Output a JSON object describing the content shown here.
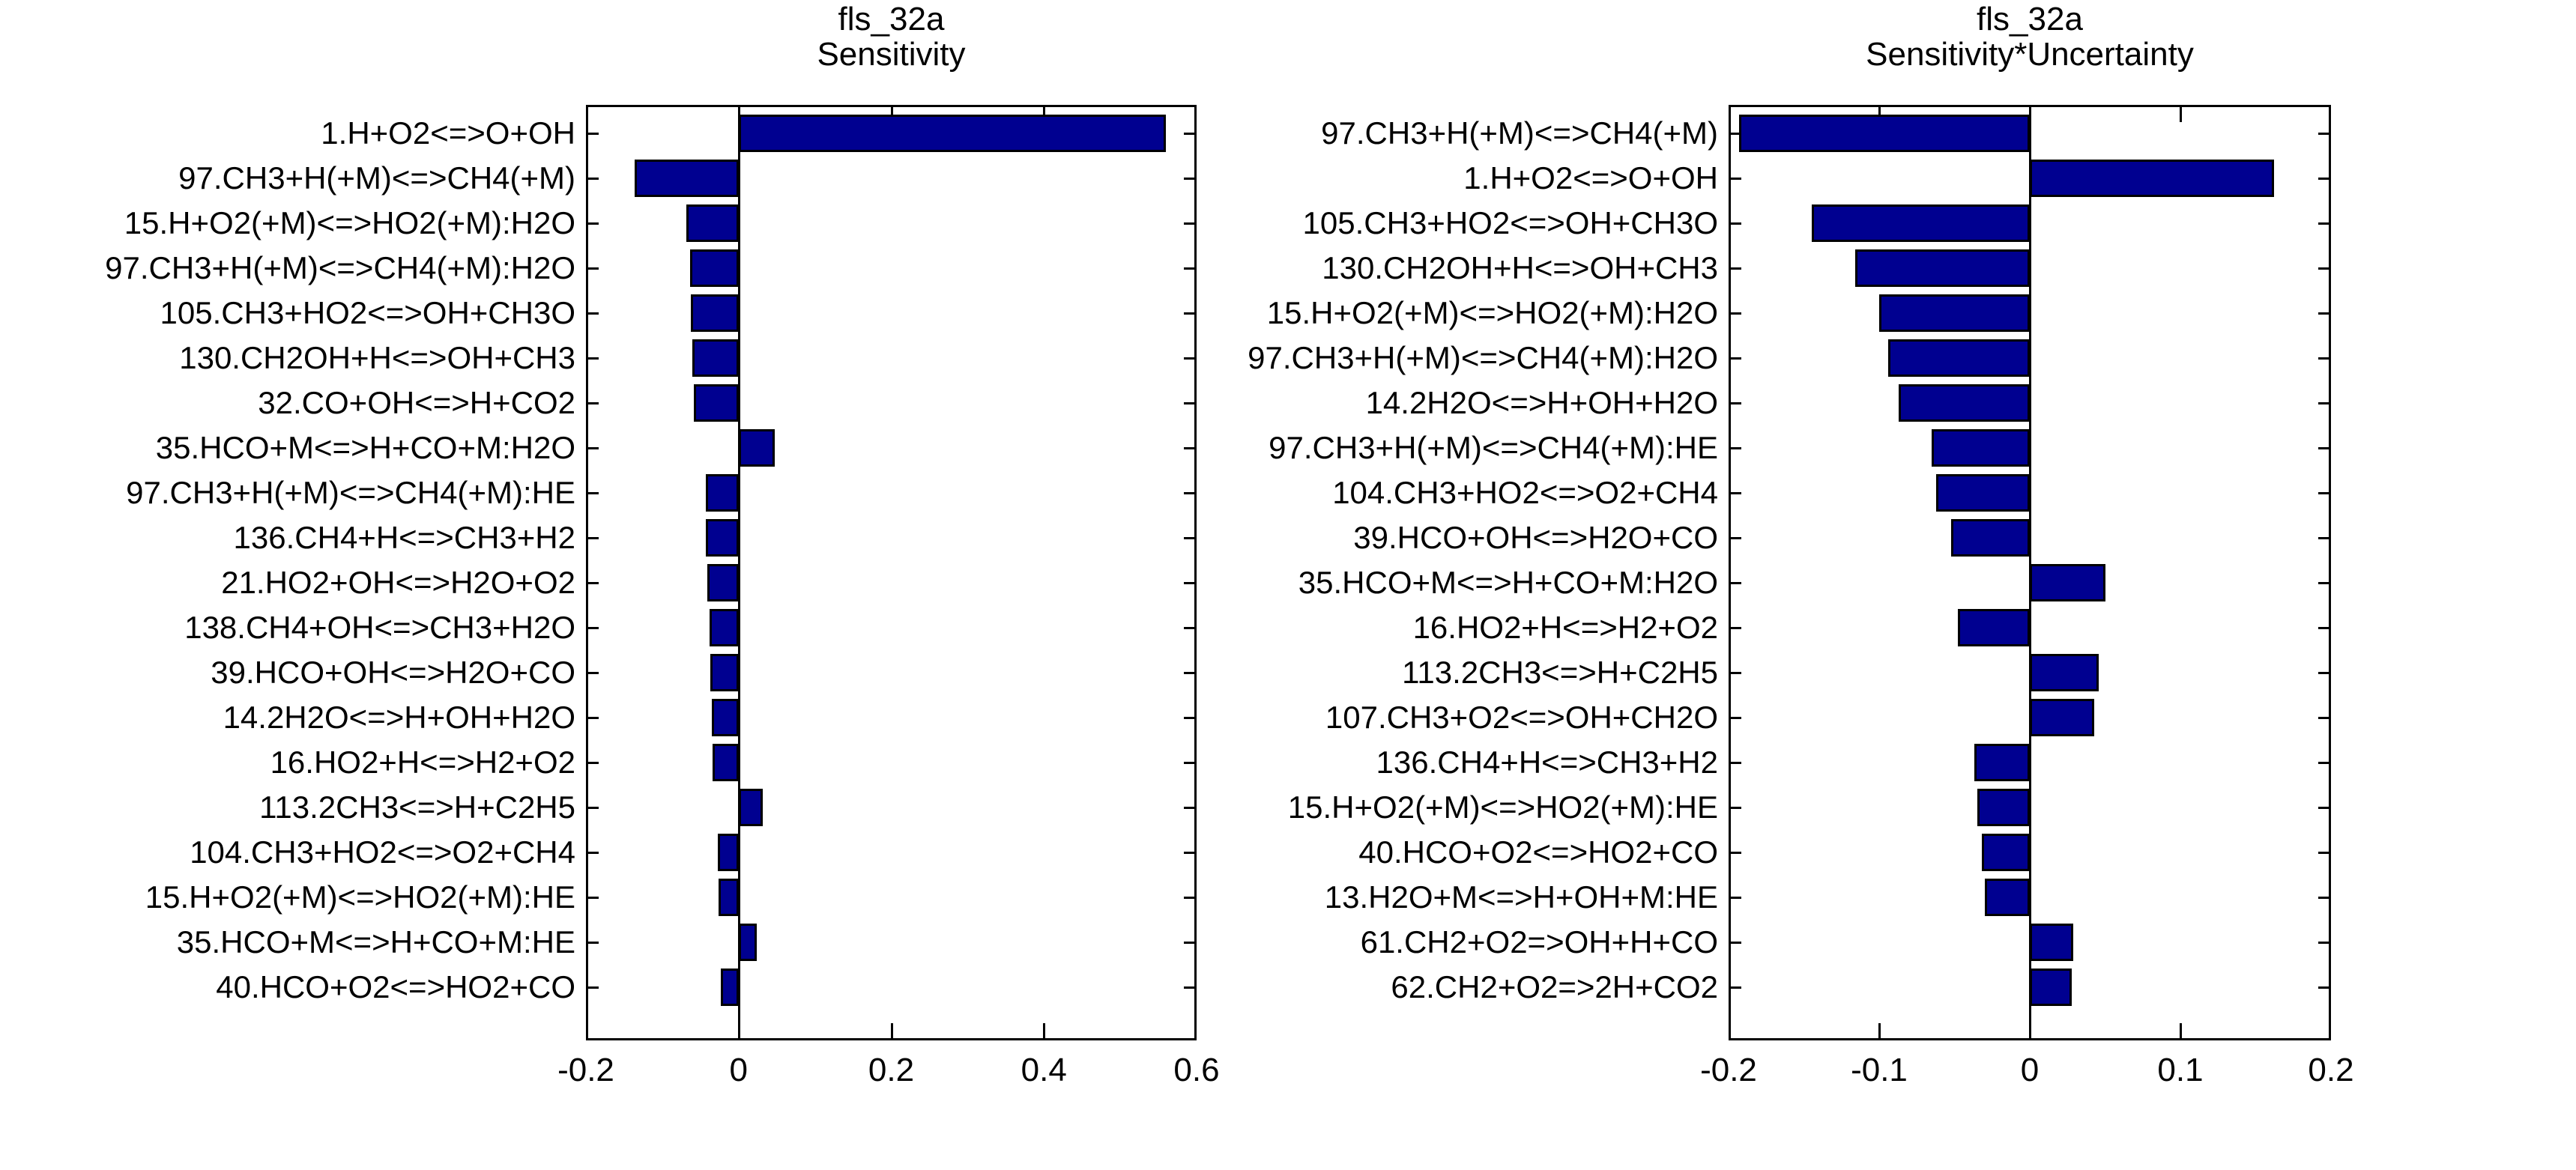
{
  "figure": {
    "background": "#ffffff",
    "bar_color": "#000090",
    "edge_color": "#000000",
    "text_color": "#000000"
  },
  "chart_data": [
    {
      "type": "bar",
      "orientation": "horizontal",
      "title": "fls_32a",
      "subtitle": "Sensitivity",
      "legend": "none",
      "grid": false,
      "bar_color": "#000090",
      "xlim": [
        -0.2,
        0.6
      ],
      "xticks": [
        -0.2,
        0,
        0.2,
        0.4,
        0.6
      ],
      "xtick_labels": [
        "-0.2",
        "0",
        "0.2",
        "0.4",
        "0.6"
      ],
      "categories": [
        "1.H+O2<=>O+OH",
        "97.CH3+H(+M)<=>CH4(+M)",
        "15.H+O2(+M)<=>HO2(+M):H2O",
        "97.CH3+H(+M)<=>CH4(+M):H2O",
        "105.CH3+HO2<=>OH+CH3O",
        "130.CH2OH+H<=>OH+CH3",
        "32.CO+OH<=>H+CO2",
        "35.HCO+M<=>H+CO+M:H2O",
        "97.CH3+H(+M)<=>CH4(+M):HE",
        "136.CH4+H<=>CH3+H2",
        "21.HO2+OH<=>H2O+O2",
        "138.CH4+OH<=>CH3+H2O",
        "39.HCO+OH<=>H2O+CO",
        "14.2H2O<=>H+OH+H2O",
        "16.HO2+H<=>H2+O2",
        "113.2CH3<=>H+C2H5",
        "104.CH3+HO2<=>O2+CH4",
        "15.H+O2(+M)<=>HO2(+M):HE",
        "35.HCO+M<=>H+CO+M:HE",
        "40.HCO+O2<=>HO2+CO"
      ],
      "values": [
        0.56,
        -0.136,
        -0.068,
        -0.064,
        -0.063,
        -0.061,
        -0.059,
        0.047,
        -0.043,
        -0.043,
        -0.041,
        -0.038,
        -0.037,
        -0.035,
        -0.034,
        0.032,
        -0.027,
        -0.026,
        0.024,
        -0.023
      ]
    },
    {
      "type": "bar",
      "orientation": "horizontal",
      "title": "fls_32a",
      "subtitle": "Sensitivity*Uncertainty",
      "legend": "none",
      "grid": false,
      "bar_color": "#000090",
      "xlim": [
        -0.2,
        0.2
      ],
      "xticks": [
        -0.2,
        -0.1,
        0,
        0.1,
        0.2
      ],
      "xtick_labels": [
        "-0.2",
        "-0.1",
        "0",
        "0.1",
        "0.2"
      ],
      "categories": [
        "97.CH3+H(+M)<=>CH4(+M)",
        "1.H+O2<=>O+OH",
        "105.CH3+HO2<=>OH+CH3O",
        "130.CH2OH+H<=>OH+CH3",
        "15.H+O2(+M)<=>HO2(+M):H2O",
        "97.CH3+H(+M)<=>CH4(+M):H2O",
        "14.2H2O<=>H+OH+H2O",
        "97.CH3+H(+M)<=>CH4(+M):HE",
        "104.CH3+HO2<=>O2+CH4",
        "39.HCO+OH<=>H2O+CO",
        "35.HCO+M<=>H+CO+M:H2O",
        "16.HO2+H<=>H2+O2",
        "113.2CH3<=>H+C2H5",
        "107.CH3+O2<=>OH+CH2O",
        "136.CH4+H<=>CH3+H2",
        "15.H+O2(+M)<=>HO2(+M):HE",
        "40.HCO+O2<=>HO2+CO",
        "13.H2O+M<=>H+OH+M:HE",
        "61.CH2+O2=>OH+H+CO",
        "62.CH2+O2=>2H+CO2"
      ],
      "values": [
        -0.193,
        0.162,
        -0.145,
        -0.116,
        -0.1,
        -0.094,
        -0.087,
        -0.065,
        -0.062,
        -0.052,
        0.05,
        -0.048,
        0.046,
        0.043,
        -0.037,
        -0.035,
        -0.032,
        -0.03,
        0.029,
        0.028
      ]
    }
  ]
}
